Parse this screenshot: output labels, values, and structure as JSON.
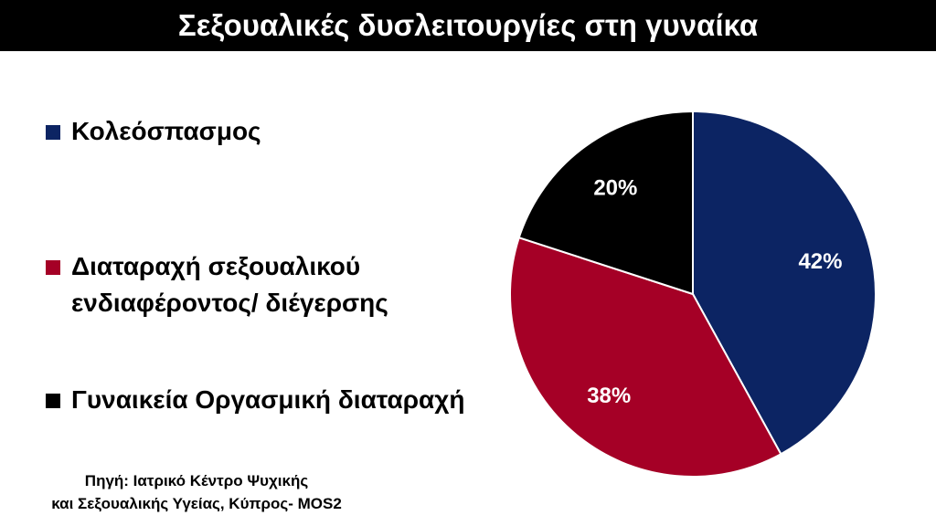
{
  "title": "Σεξουαλικές δυσλειτουργίες στη γυναίκα",
  "source": {
    "line1": "Πηγή: Ιατρικό Κέντρο Ψυχικής",
    "line2": "και Σεξουαλικής Υγείας, Κύπρος- MOS2"
  },
  "chart_data": {
    "type": "pie",
    "legend_position": "left",
    "slices": [
      {
        "label": "Κολεόσπασμος",
        "value": 42,
        "display": "42%",
        "color": "#0c2463"
      },
      {
        "label": "Διαταραχή σεξουαλικού\nενδιαφέροντος/ διέγερσης",
        "value": 38,
        "display": "38%",
        "color": "#a50026"
      },
      {
        "label": "Γυναικεία Οργασμική διαταραχή",
        "value": 20,
        "display": "20%",
        "color": "#000000"
      }
    ]
  }
}
